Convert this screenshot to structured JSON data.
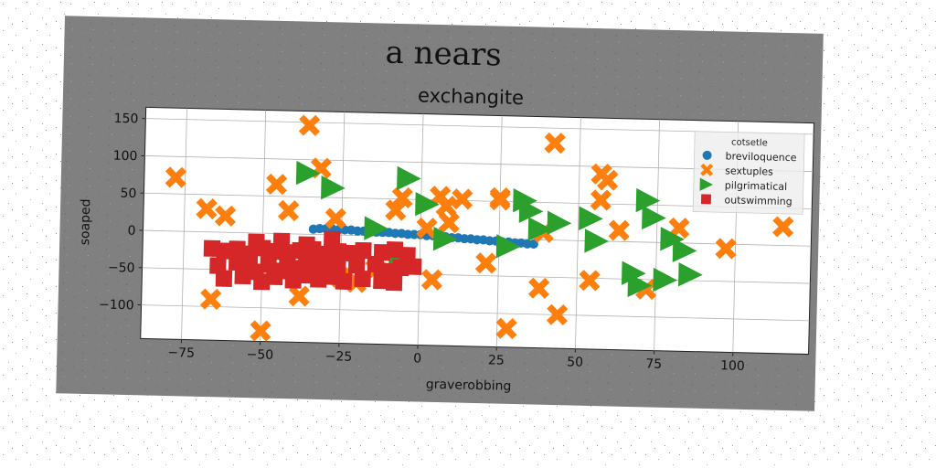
{
  "suptitle": "a nears",
  "chart_data": {
    "type": "scatter",
    "title": "exchangite",
    "xlabel": "graverobbing",
    "ylabel": "soaped",
    "xlim": [
      -88,
      124
    ],
    "ylim": [
      -145,
      165
    ],
    "xticks": [
      -75,
      -50,
      -25,
      0,
      25,
      50,
      75,
      100
    ],
    "yticks": [
      -100,
      -50,
      0,
      50,
      100,
      150
    ],
    "grid": true,
    "legend": {
      "title": "cotsetle",
      "placement": "top-right"
    },
    "series": [
      {
        "name": "breviloquence",
        "marker": "circle",
        "color": "#1f77b4",
        "points": [
          [
            -34,
            7
          ],
          [
            -32,
            8
          ],
          [
            -30,
            8
          ],
          [
            -28,
            8
          ],
          [
            -26,
            7
          ],
          [
            -24,
            7
          ],
          [
            -22,
            7
          ],
          [
            -20,
            6
          ],
          [
            -18,
            6
          ],
          [
            -16,
            6
          ],
          [
            -14,
            5
          ],
          [
            -12,
            5
          ],
          [
            -10,
            5
          ],
          [
            -8,
            4
          ],
          [
            -6,
            4
          ],
          [
            -4,
            3
          ],
          [
            -2,
            3
          ],
          [
            0,
            3
          ],
          [
            2,
            2
          ],
          [
            4,
            2
          ],
          [
            6,
            1
          ],
          [
            8,
            1
          ],
          [
            10,
            0
          ],
          [
            12,
            0
          ],
          [
            14,
            -1
          ],
          [
            16,
            -1
          ],
          [
            18,
            -2
          ],
          [
            20,
            -2
          ],
          [
            22,
            -3
          ],
          [
            24,
            -3
          ],
          [
            26,
            -4
          ],
          [
            28,
            -4
          ],
          [
            30,
            -5
          ],
          [
            32,
            -5
          ],
          [
            34,
            -6
          ],
          [
            36,
            -6
          ]
        ]
      },
      {
        "name": "sextuples",
        "marker": "x",
        "color": "#ff7f0e",
        "points": [
          [
            -78,
            72
          ],
          [
            -68,
            31
          ],
          [
            -66,
            -90
          ],
          [
            -62,
            22
          ],
          [
            -50,
            -131
          ],
          [
            -46,
            66
          ],
          [
            -42,
            31
          ],
          [
            -38,
            -83
          ],
          [
            -36,
            146
          ],
          [
            -32,
            89
          ],
          [
            -27,
            22
          ],
          [
            -25,
            -57
          ],
          [
            -20,
            -63
          ],
          [
            -14,
            -45
          ],
          [
            -8,
            35
          ],
          [
            -6,
            52
          ],
          [
            2,
            12
          ],
          [
            6,
            55
          ],
          [
            8,
            42
          ],
          [
            9,
            20
          ],
          [
            13,
            52
          ],
          [
            4,
            -57
          ],
          [
            21,
            -33
          ],
          [
            25,
            52
          ],
          [
            25,
            55
          ],
          [
            28,
            -120
          ],
          [
            38,
            -65
          ],
          [
            39,
            10
          ],
          [
            42,
            130
          ],
          [
            44,
            -100
          ],
          [
            54,
            -53
          ],
          [
            57,
            90
          ],
          [
            57,
            55
          ],
          [
            59,
            82
          ],
          [
            63,
            15
          ],
          [
            72,
            -63
          ],
          [
            82,
            20
          ],
          [
            97,
            -6
          ],
          [
            115,
            25
          ]
        ]
      },
      {
        "name": "pilgrimatical",
        "marker": "triangle-right",
        "color": "#2ca02c",
        "points": [
          [
            -36,
            82
          ],
          [
            -28,
            63
          ],
          [
            -14,
            10
          ],
          [
            -6,
            -35
          ],
          [
            -4,
            78
          ],
          [
            2,
            44
          ],
          [
            8,
            -2
          ],
          [
            28,
            -10
          ],
          [
            33,
            52
          ],
          [
            35,
            38
          ],
          [
            38,
            14
          ],
          [
            44,
            23
          ],
          [
            54,
            30
          ],
          [
            56,
            0
          ],
          [
            72,
            56
          ],
          [
            74,
            33
          ],
          [
            80,
            5
          ],
          [
            84,
            -10
          ],
          [
            68,
            -42
          ],
          [
            86,
            -42
          ],
          [
            70,
            -58
          ],
          [
            78,
            -50
          ]
        ]
      },
      {
        "name": "outswimming",
        "marker": "square",
        "color": "#d62728",
        "points": [
          [
            -66,
            -22
          ],
          [
            -62,
            -25
          ],
          [
            -58,
            -22
          ],
          [
            -54,
            -28
          ],
          [
            -50,
            -20
          ],
          [
            -46,
            -24
          ],
          [
            -42,
            -25
          ],
          [
            -38,
            -22
          ],
          [
            -34,
            -20
          ],
          [
            -30,
            -26
          ],
          [
            -26,
            -22
          ],
          [
            -22,
            -24
          ],
          [
            -18,
            -20
          ],
          [
            -12,
            -22
          ],
          [
            -8,
            -18
          ],
          [
            -4,
            -25
          ],
          [
            -64,
            -45
          ],
          [
            -58,
            -40
          ],
          [
            -54,
            -48
          ],
          [
            -48,
            -42
          ],
          [
            -42,
            -40
          ],
          [
            -38,
            -46
          ],
          [
            -34,
            -38
          ],
          [
            -30,
            -45
          ],
          [
            -26,
            -42
          ],
          [
            -20,
            -40
          ],
          [
            -14,
            -38
          ],
          [
            -10,
            -47
          ],
          [
            -6,
            -42
          ],
          [
            -2,
            -40
          ],
          [
            -62,
            -62
          ],
          [
            -56,
            -58
          ],
          [
            -50,
            -65
          ],
          [
            -46,
            -58
          ],
          [
            -40,
            -62
          ],
          [
            -36,
            -55
          ],
          [
            -32,
            -60
          ],
          [
            -28,
            -56
          ],
          [
            -24,
            -62
          ],
          [
            -18,
            -58
          ],
          [
            -12,
            -60
          ],
          [
            -8,
            -62
          ],
          [
            -52,
            -12
          ],
          [
            -44,
            -10
          ],
          [
            -36,
            -14
          ],
          [
            -28,
            -6
          ],
          [
            -36,
            -30
          ],
          [
            -28,
            -34
          ],
          [
            -52,
            -52
          ],
          [
            -44,
            -50
          ]
        ]
      }
    ]
  }
}
